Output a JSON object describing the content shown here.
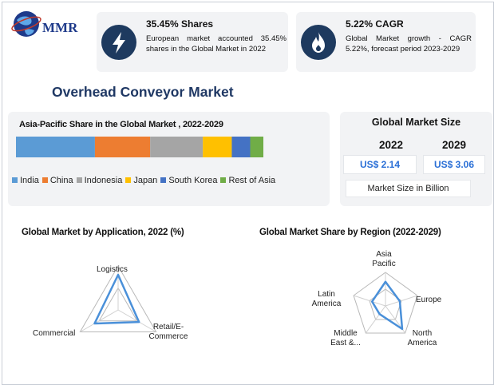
{
  "brand": {
    "name": "MMR"
  },
  "stats": [
    {
      "title": "35.45% Shares",
      "desc": "European market accounted 35.45% shares in the Global Market in 2022",
      "icon": "lightning-icon"
    },
    {
      "title": "5.22% CAGR",
      "desc": "Global Market growth - CAGR 5.22%, forecast period 2023-2029",
      "icon": "flame-icon"
    }
  ],
  "page_title": "Overhead Conveyor Market",
  "market_size": {
    "title": "Global Market Size",
    "years": [
      "2022",
      "2029"
    ],
    "values": [
      "US$ 2.14",
      "US$ 3.06"
    ],
    "footnote": "Market Size in Billion"
  },
  "colors": {
    "navy": "#1e3a5f",
    "title_blue": "#1f3864",
    "value_blue": "#2a6fd6",
    "radar_line": "#4a90d9"
  },
  "chart_data": [
    {
      "type": "bar",
      "orientation": "horizontal-stacked",
      "title": "Asia-Pacific Share in the Global Market , 2022-2029",
      "legend_position": "bottom",
      "series": [
        {
          "name": "India",
          "value": 30,
          "color": "#5b9bd5"
        },
        {
          "name": "China",
          "value": 21,
          "color": "#ed7d31"
        },
        {
          "name": "Indonesia",
          "value": 20,
          "color": "#a5a5a5"
        },
        {
          "name": "Japan",
          "value": 11,
          "color": "#ffc000"
        },
        {
          "name": "South Korea",
          "value": 7,
          "color": "#4472c4"
        },
        {
          "name": "Rest of Asia",
          "value": 5,
          "color": "#70ad47"
        }
      ]
    },
    {
      "type": "radar",
      "title": "Global Market by Application, 2022 (%)",
      "axes": [
        "Logistics",
        "Retail/E-Commerce",
        "Commercial"
      ],
      "values": [
        0.8,
        0.55,
        0.62
      ]
    },
    {
      "type": "radar",
      "title": "Global Market Share by Region (2022-2029)",
      "axes": [
        "Asia Pacific",
        "Europe",
        "North America",
        "Middle East &...",
        "Latin America"
      ],
      "values": [
        0.72,
        0.45,
        0.85,
        0.3,
        0.42
      ]
    }
  ]
}
